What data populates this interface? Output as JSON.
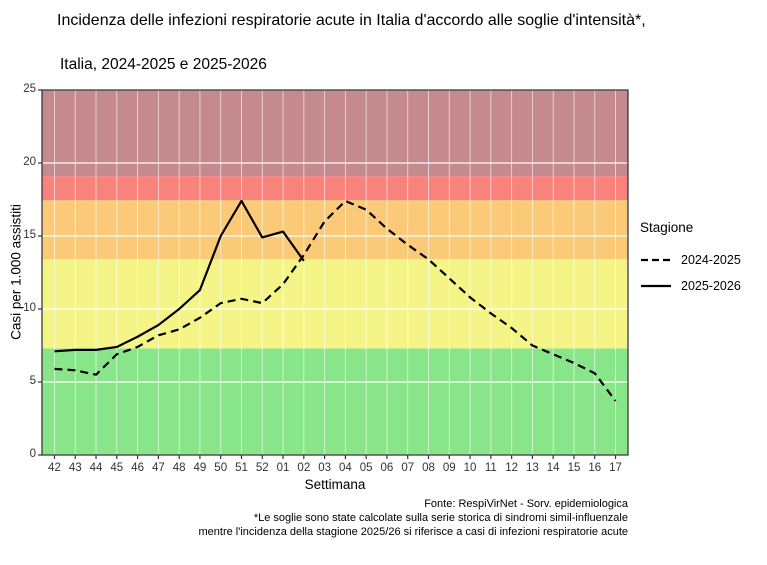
{
  "title": "Incidenza delle infezioni respiratorie acute in Italia d'accordo alle soglie d'intensità*,",
  "subtitle": "Italia, 2024-2025 e 2025-2026",
  "chart_data": {
    "type": "line",
    "title": "Incidenza delle infezioni respiratorie acute in Italia d'accordo alle soglie d'intensità*, Italia, 2024-2025 e 2025-2026",
    "x_label": "Settimana",
    "y_label": "Casi per 1.000 assistiti",
    "ylim": [
      0,
      25
    ],
    "y_ticks": [
      0,
      5,
      10,
      15,
      20,
      25
    ],
    "grid": true,
    "legend_position": "right",
    "legend_title": "Stagione",
    "categories": [
      "42",
      "43",
      "44",
      "45",
      "46",
      "47",
      "48",
      "49",
      "50",
      "51",
      "52",
      "01",
      "02",
      "03",
      "04",
      "05",
      "06",
      "07",
      "08",
      "09",
      "10",
      "11",
      "12",
      "13",
      "14",
      "15",
      "16",
      "17"
    ],
    "series": [
      {
        "name": "2024-2025",
        "style": "dashed",
        "color": "#000000",
        "values": [
          5.9,
          5.8,
          5.5,
          6.9,
          7.4,
          8.2,
          8.6,
          9.4,
          10.4,
          10.7,
          10.4,
          11.7,
          13.7,
          16.0,
          17.4,
          16.8,
          15.5,
          14.4,
          13.4,
          12.1,
          10.8,
          9.7,
          8.7,
          7.5,
          6.9,
          6.3,
          5.6,
          3.7
        ]
      },
      {
        "name": "2025-2026",
        "style": "solid",
        "color": "#000000",
        "values": [
          7.1,
          7.2,
          7.2,
          7.4,
          8.1,
          8.9,
          10.0,
          11.3,
          15.0,
          17.4,
          14.9,
          15.3,
          13.3
        ]
      }
    ],
    "intensity_bands": [
      {
        "from": 0,
        "to": 7.3,
        "color": "#89E589"
      },
      {
        "from": 7.3,
        "to": 13.4,
        "color": "#F5F587"
      },
      {
        "from": 13.4,
        "to": 17.45,
        "color": "#FACA78"
      },
      {
        "from": 17.45,
        "to": 19.1,
        "color": "#F8827C"
      },
      {
        "from": 19.1,
        "to": 25,
        "color": "#C58A8D"
      }
    ]
  },
  "caption": {
    "source": "Fonte: RespiVirNet - Sorv. epidemiologica",
    "note1": "*Le soglie sono state calcolate sulla serie storica di sindromi simil-influenzale",
    "note2": "mentre l'incidenza della stagione 2025/26 si riferisce a casi di infezioni respiratorie acute"
  }
}
